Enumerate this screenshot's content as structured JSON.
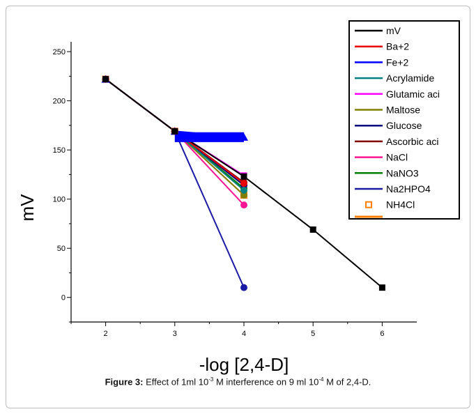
{
  "chart_data": {
    "type": "line",
    "xlabel": "-log [2,4-D]",
    "ylabel": "mV",
    "xlim": [
      1.5,
      6.5
    ],
    "ylim": [
      -25,
      260
    ],
    "x_ticks": [
      "2",
      "3",
      "4",
      "5",
      "6"
    ],
    "y_ticks": [
      "0",
      "50",
      "100",
      "150",
      "200",
      "250"
    ],
    "legend_position": "top-right",
    "series": [
      {
        "name": "mV",
        "color": "#000000",
        "marker": "square",
        "x": [
          2,
          3,
          4,
          5,
          6
        ],
        "y": [
          222,
          169,
          123,
          69,
          10
        ]
      },
      {
        "name": "Ba+2",
        "color": "#e60000",
        "marker": "circle",
        "x": [
          2,
          3,
          4
        ],
        "y": [
          222,
          169,
          116
        ]
      },
      {
        "name": "Fe+2",
        "color": "#0000ff",
        "marker": "triangle",
        "x": [
          2,
          3,
          4
        ],
        "y": [
          222,
          169,
          163
        ]
      },
      {
        "name": "Acrylamide",
        "color": "#008080",
        "marker": "circle",
        "x": [
          2,
          3,
          4
        ],
        "y": [
          222,
          169,
          109
        ]
      },
      {
        "name": "Glutamic aci",
        "color": "#ff00ff",
        "marker": "square",
        "x": [
          2,
          3,
          4
        ],
        "y": [
          222,
          169,
          124
        ]
      },
      {
        "name": "Maltose",
        "color": "#808000",
        "marker": "circle",
        "x": [
          2,
          3,
          4
        ],
        "y": [
          222,
          169,
          104
        ]
      },
      {
        "name": "Glucose",
        "color": "#000080",
        "marker": "circle",
        "x": [
          2,
          3,
          4
        ],
        "y": [
          222,
          169,
          114
        ]
      },
      {
        "name": "Ascorbic aci",
        "color": "#800000",
        "marker": "circle",
        "x": [
          2,
          3,
          4
        ],
        "y": [
          222,
          169,
          117
        ]
      },
      {
        "name": "NaCl",
        "color": "#ff1493",
        "marker": "circle",
        "x": [
          2,
          3,
          4
        ],
        "y": [
          222,
          169,
          94
        ]
      },
      {
        "name": "NaNO3",
        "color": "#008000",
        "marker": "circle",
        "x": [
          2,
          3,
          4
        ],
        "y": [
          222,
          169,
          111
        ]
      },
      {
        "name": "Na2HPO4",
        "color": "#1a1aa6",
        "marker": "circle",
        "x": [
          2,
          3,
          4
        ],
        "y": [
          222,
          169,
          10
        ]
      },
      {
        "name": "NH4Cl",
        "color": "#ff8000",
        "marker": "open-square",
        "x": [
          2,
          3,
          4
        ],
        "y": [
          222,
          169,
          104
        ]
      }
    ]
  },
  "caption": {
    "label": "Figure 3:",
    "text_a": " Effect of 1ml 10",
    "sup_a": "-3",
    "text_b": " M interference on 9 ml 10",
    "sup_b": "-4",
    "text_c": " M of 2,4-D."
  }
}
